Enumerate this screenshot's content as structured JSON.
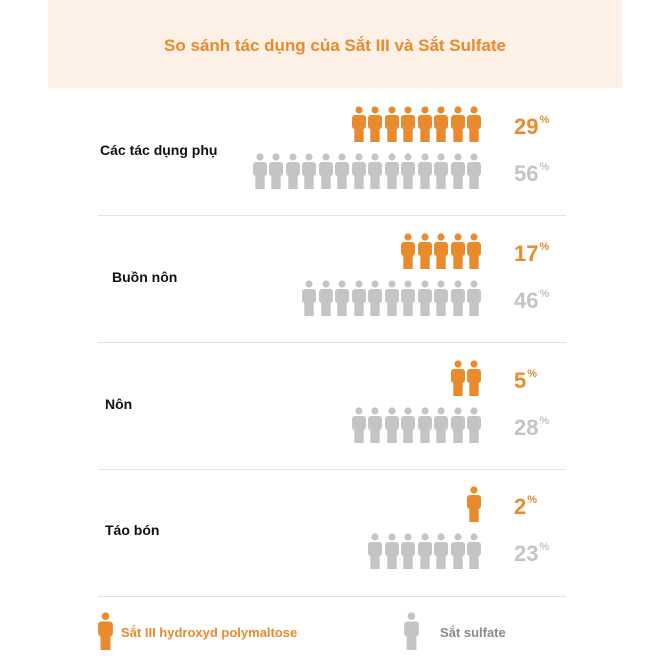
{
  "chart_data": {
    "type": "pictogram",
    "title": "So sánh tác dụng của Sắt III và Sắt Sulfate",
    "unit": "%",
    "categories": [
      "Các tác dụng phụ",
      "Buồn nôn",
      "Nôn",
      "Táo bón"
    ],
    "series": [
      {
        "name": "Sắt III hydroxyd polymaltose",
        "color": "#e98a2c",
        "values": [
          29,
          17,
          5,
          2
        ]
      },
      {
        "name": "Sắt sulfate",
        "color": "#c4c4c4",
        "values": [
          56,
          46,
          28,
          23
        ]
      }
    ],
    "icon_counts": [
      [
        8,
        14
      ],
      [
        5,
        11
      ],
      [
        2,
        8
      ],
      [
        1,
        7
      ]
    ],
    "legend_placement": "bottom",
    "icon": "person-icon"
  }
}
